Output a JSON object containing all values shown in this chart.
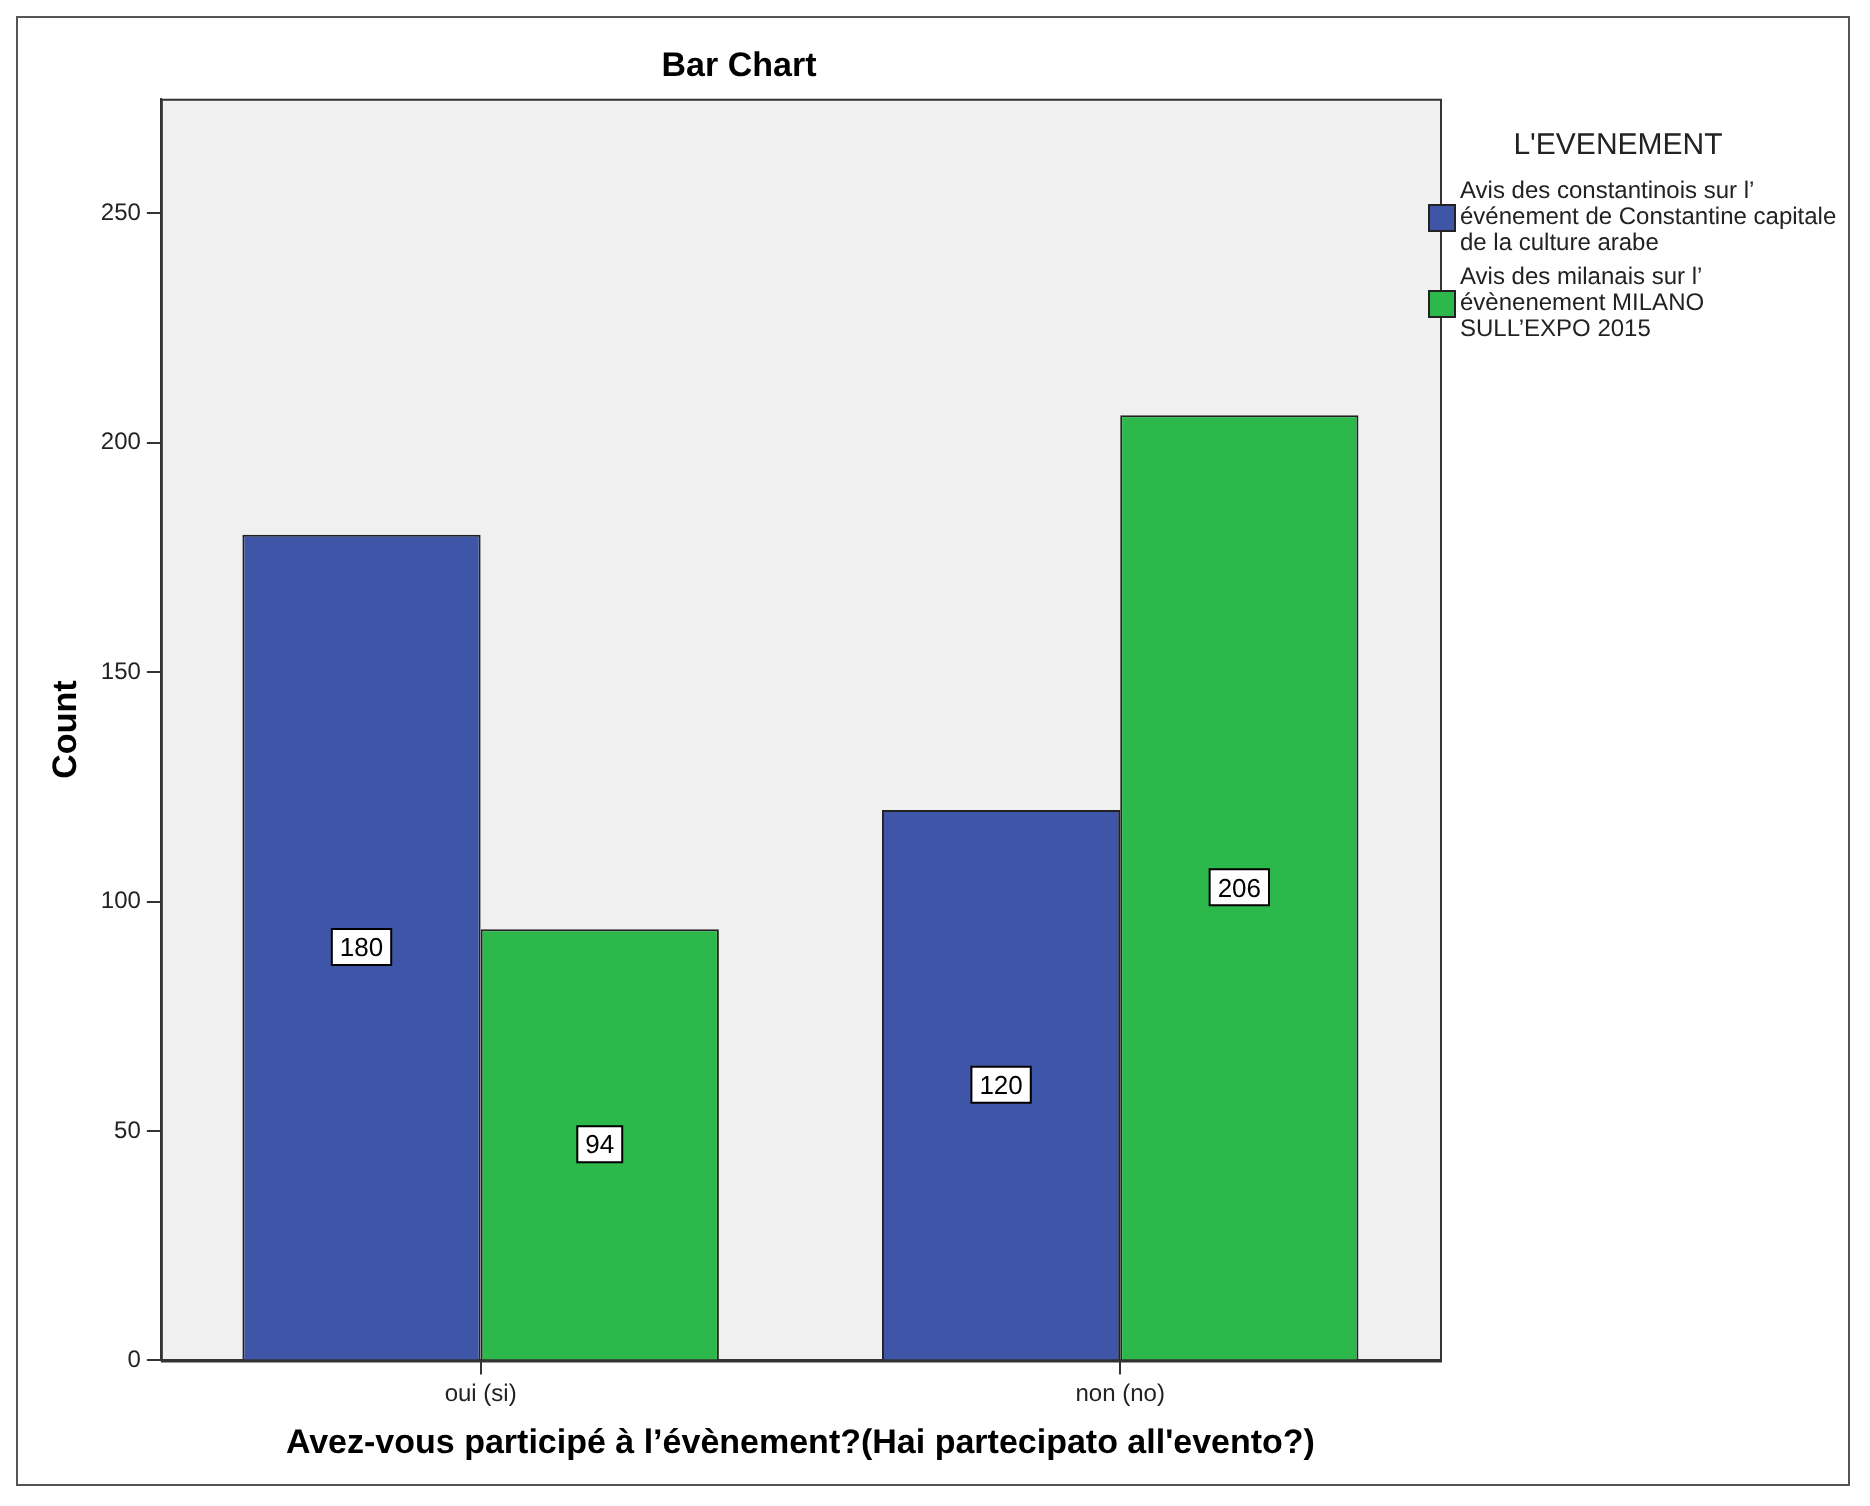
{
  "chart_data": {
    "type": "bar",
    "title": "Bar Chart",
    "xlabel": "Avez-vous participé à l’évènement?(Hai partecipato all'evento?)",
    "ylabel": "Count",
    "legend_title": "L'EVENEMENT",
    "categories": [
      "oui (si)",
      "non (no)"
    ],
    "series": [
      {
        "name": "Avis des constantinois sur l’ événement de Constantine capitale de la culture arabe",
        "color": "#3f56a8",
        "values": [
          180,
          120
        ]
      },
      {
        "name": "Avis des milanais sur l’ évènenement MILANO SULL’EXPO 2015",
        "color": "#2db84b",
        "values": [
          94,
          206
        ]
      }
    ],
    "ylim": [
      0,
      275
    ],
    "yticks": [
      0,
      50,
      100,
      150,
      200,
      250
    ],
    "grid": false,
    "legend": "right",
    "data_labels": true
  }
}
